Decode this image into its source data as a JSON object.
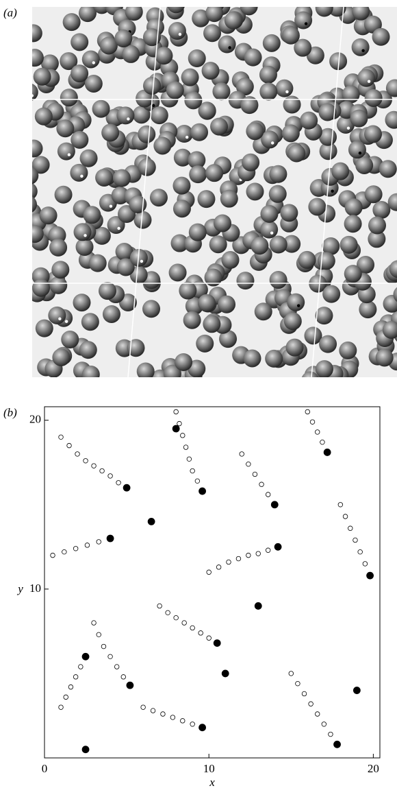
{
  "figure": {
    "panel_a_label": "(a)"
  },
  "chart_data": {
    "type": "scatter",
    "panel_label": "(b)",
    "xlabel": "x",
    "ylabel": "y",
    "xlim": [
      0,
      20.4
    ],
    "ylim": [
      0,
      20.8
    ],
    "xticks": [
      0,
      10,
      20
    ],
    "yticks": [
      10,
      20
    ],
    "series": [
      {
        "marker": "open",
        "color": "#000000",
        "x": [
          1,
          1.5,
          2,
          2.5,
          3,
          3.5,
          4,
          4.5,
          5,
          8,
          8.2,
          8.4,
          8.6,
          8.8,
          9,
          9.3,
          9.6,
          10,
          10.6,
          11.2,
          11.8,
          12.4,
          13,
          13.6,
          14.2,
          3,
          3.3,
          3.6,
          4,
          4.4,
          4.8,
          5.2,
          15,
          15.4,
          15.8,
          16.2,
          16.6,
          17,
          17.4,
          17.8,
          0.5,
          1.2,
          1.9,
          2.6,
          3.3,
          4,
          18,
          18.3,
          18.6,
          18.9,
          19.2,
          19.5,
          19.8,
          6,
          6.6,
          7.2,
          7.8,
          8.4,
          9,
          9.6,
          12,
          12.4,
          12.8,
          13.2,
          13.6,
          14,
          7,
          7.5,
          8,
          8.5,
          9,
          9.5,
          10,
          10.5,
          1,
          1.3,
          1.6,
          1.9,
          2.2,
          2.5,
          16,
          16.3,
          16.6,
          16.9,
          17.2
        ],
        "values": [
          19,
          18.5,
          18,
          17.6,
          17.3,
          17,
          16.7,
          16.3,
          16,
          20.5,
          19.8,
          19.1,
          18.4,
          17.7,
          17,
          16.4,
          15.8,
          11,
          11.3,
          11.6,
          11.8,
          12,
          12.1,
          12.3,
          12.5,
          8,
          7.3,
          6.6,
          6,
          5.4,
          4.8,
          4.3,
          5,
          4.4,
          3.8,
          3.2,
          2.6,
          2,
          1.4,
          0.8,
          12,
          12.2,
          12.4,
          12.6,
          12.8,
          13,
          15,
          14.3,
          13.6,
          12.9,
          12.2,
          11.5,
          10.8,
          3,
          2.8,
          2.6,
          2.4,
          2.2,
          2,
          1.8,
          18,
          17.4,
          16.8,
          16.2,
          15.6,
          15,
          9,
          8.6,
          8.3,
          8,
          7.7,
          7.4,
          7.1,
          6.8,
          3,
          3.6,
          4.2,
          4.8,
          5.4,
          6,
          20.5,
          19.9,
          19.3,
          18.7,
          18.1
        ]
      },
      {
        "marker": "filled",
        "color": "#000000",
        "x": [
          5,
          9.6,
          14.2,
          5.2,
          17.8,
          4,
          19.8,
          9.6,
          14,
          10.5,
          2.5,
          17.2,
          2.5,
          11,
          13,
          6.5,
          19,
          8
        ],
        "values": [
          16,
          15.8,
          12.5,
          4.3,
          0.8,
          13,
          10.8,
          1.8,
          15,
          6.8,
          6,
          18.1,
          0.5,
          5,
          9,
          14,
          4,
          19.5
        ]
      }
    ]
  }
}
